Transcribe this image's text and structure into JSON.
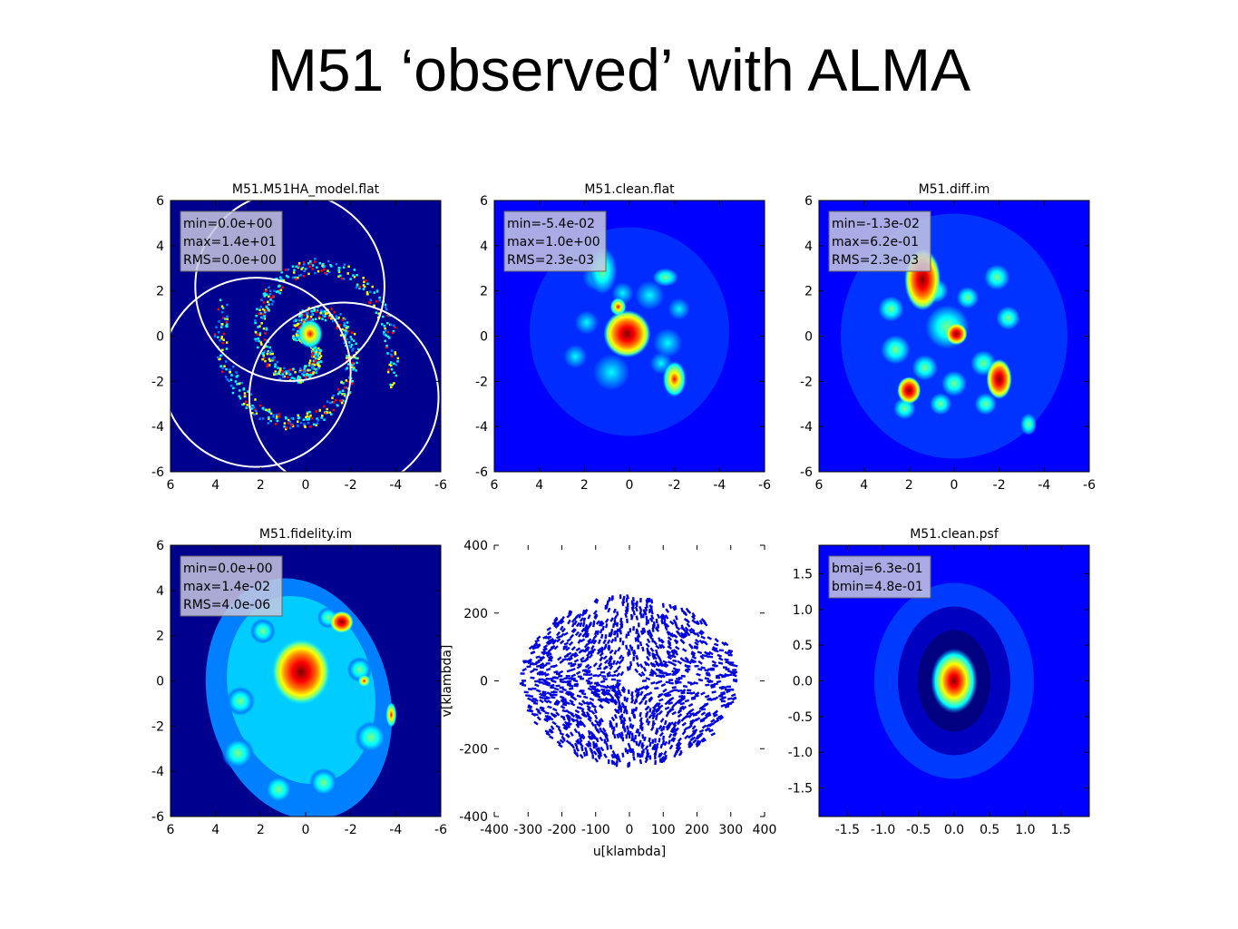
{
  "title": "M51 ‘observed’ with ALMA",
  "colors": {
    "cmap": [
      "#00008f",
      "#0000ff",
      "#007fff",
      "#00ffff",
      "#7fff7f",
      "#ffff00",
      "#ff7f00",
      "#ff0000",
      "#7f0000"
    ],
    "uv_points": "#0000dd",
    "stats_box": "#c8c8e0",
    "overlay_circles": "#ffffff"
  },
  "chart_data": [
    {
      "type": "heatmap",
      "title": "M51.M51HA_model.flat",
      "xlabel": "",
      "ylabel": "",
      "xlim": [
        6,
        -6
      ],
      "ylim": [
        -6,
        6
      ],
      "xticks": [
        "6",
        "4",
        "2",
        "0",
        "-2",
        "-4",
        "-6"
      ],
      "yticks": [
        "-6",
        "-4",
        "-2",
        "0",
        "2",
        "4",
        "6"
      ],
      "stats": [
        "min=0.0e+00",
        "max=1.4e+01",
        "RMS=0.0e+00"
      ],
      "overlay_circles": [
        {
          "x": 2.2,
          "y": -1.6,
          "r": 4.2
        },
        {
          "x": -1.7,
          "y": -2.7,
          "r": 4.2
        },
        {
          "x": 0.7,
          "y": 2.2,
          "r": 4.2
        }
      ],
      "grid": false
    },
    {
      "type": "heatmap",
      "title": "M51.clean.flat",
      "xlabel": "",
      "ylabel": "",
      "xlim": [
        6,
        -6
      ],
      "ylim": [
        -6,
        6
      ],
      "xticks": [
        "6",
        "4",
        "2",
        "0",
        "-2",
        "-4",
        "-6"
      ],
      "yticks": [
        "-6",
        "-4",
        "-2",
        "0",
        "2",
        "4",
        "6"
      ],
      "stats": [
        "min=-5.4e-02",
        "max=1.0e+00",
        "RMS=2.3e-03"
      ],
      "grid": false
    },
    {
      "type": "heatmap",
      "title": "M51.diff.im",
      "xlabel": "",
      "ylabel": "",
      "xlim": [
        6,
        -6
      ],
      "ylim": [
        -6,
        6
      ],
      "xticks": [
        "6",
        "4",
        "2",
        "0",
        "-2",
        "-4",
        "-6"
      ],
      "yticks": [
        "-6",
        "-4",
        "-2",
        "0",
        "2",
        "4",
        "6"
      ],
      "stats": [
        "min=-1.3e-02",
        "max=6.2e-01",
        "RMS=2.3e-03"
      ],
      "grid": false
    },
    {
      "type": "heatmap",
      "title": "M51.fidelity.im",
      "xlabel": "",
      "ylabel": "",
      "xlim": [
        6,
        -6
      ],
      "ylim": [
        -6,
        6
      ],
      "xticks": [
        "6",
        "4",
        "2",
        "0",
        "-2",
        "-4",
        "-6"
      ],
      "yticks": [
        "-6",
        "-4",
        "-2",
        "0",
        "2",
        "4",
        "6"
      ],
      "stats": [
        "min=0.0e+00",
        "max=1.4e-02",
        "RMS=4.0e-06"
      ],
      "grid": false
    },
    {
      "type": "scatter",
      "title": "",
      "xlabel": "u[klambda]",
      "ylabel": "v[klambda]",
      "xlim": [
        -400,
        400
      ],
      "ylim": [
        -400,
        400
      ],
      "xticks": [
        "-400",
        "-300",
        "-200",
        "-100",
        "0",
        "100",
        "200",
        "300",
        "400"
      ],
      "yticks": [
        "-400",
        "-200",
        "0",
        "200",
        "400"
      ],
      "coverage": {
        "outer_radius_u": 320,
        "outer_radius_v": 250,
        "inner_hole_radius": 25,
        "approx_points": 1400
      },
      "grid": false
    },
    {
      "type": "heatmap",
      "title": "M51.clean.psf",
      "xlabel": "",
      "ylabel": "",
      "xlim": [
        -1.9,
        1.9
      ],
      "ylim": [
        -1.9,
        1.9
      ],
      "xticks": [
        "-1.5",
        "-1.0",
        "-0.5",
        "0.0",
        "0.5",
        "1.0",
        "1.5"
      ],
      "yticks": [
        "-1.5",
        "-1.0",
        "-0.5",
        "0.0",
        "0.5",
        "1.0",
        "1.5"
      ],
      "stats": [
        "bmaj=6.3e-01",
        "bmin=4.8e-01"
      ],
      "grid": false
    }
  ]
}
